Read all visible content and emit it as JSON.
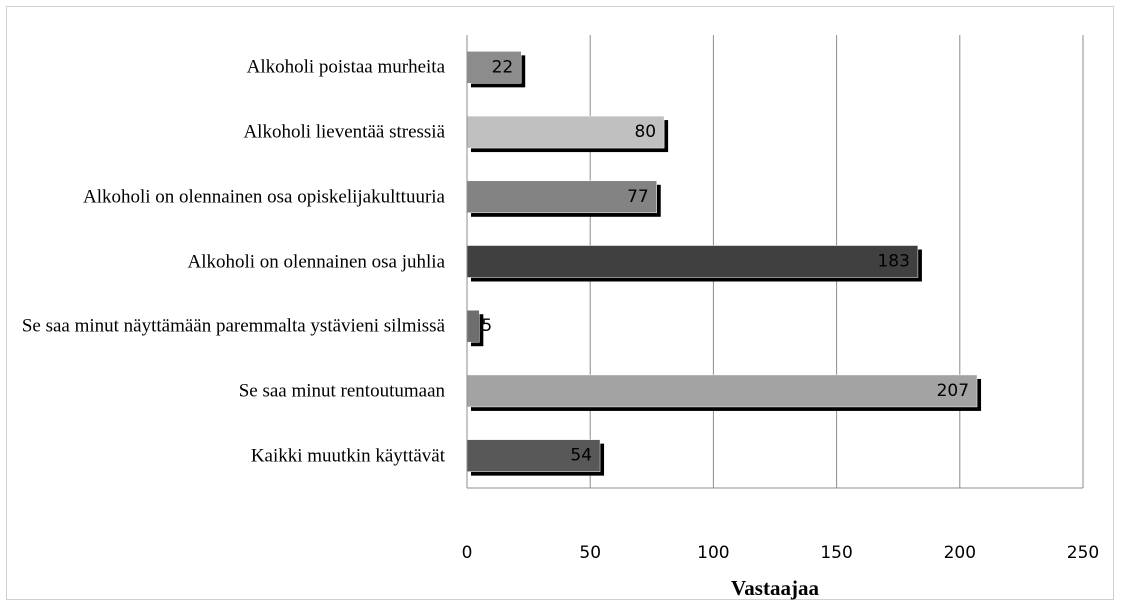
{
  "chart_data": {
    "type": "bar",
    "orientation": "horizontal",
    "categories": [
      "Alkoholi poistaa murheita",
      "Alkoholi lieventää stressiä",
      "Alkoholi on olennainen osa opiskelijakulttuuria",
      "Alkoholi on olennainen osa juhlia",
      "Se saa minut näyttämään paremmalta ystävieni silmissä",
      "Se saa minut rentoutumaan",
      "Kaikki muutkin käyttävät"
    ],
    "values": [
      22,
      80,
      77,
      183,
      5,
      207,
      54
    ],
    "colors": [
      "#8c8c8c",
      "#c0c0c0",
      "#838383",
      "#404040",
      "#6e6e6e",
      "#a3a3a3",
      "#585858"
    ],
    "xlabel": "Vastaajaa",
    "xlim": [
      0,
      250
    ],
    "xticks": [
      0,
      50,
      100,
      150,
      200,
      250
    ],
    "grid": true
  }
}
